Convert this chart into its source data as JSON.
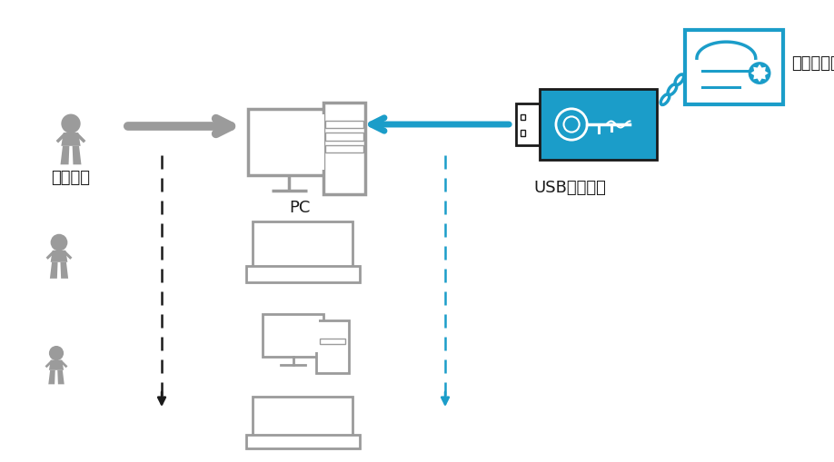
{
  "bg_color": "#ffffff",
  "gray": "#9B9B9B",
  "dark_gray": "#7a7a7a",
  "blue": "#1B9DC9",
  "blue2": "#1580A8",
  "black": "#1a1a1a",
  "text_color": "#1a1a1a",
  "user_label": "ユーザー",
  "pc_label": "PC",
  "usb_label": "USBドングル",
  "license_label": "ライセンス",
  "figsize": [
    9.18,
    5.09
  ],
  "dpi": 100
}
